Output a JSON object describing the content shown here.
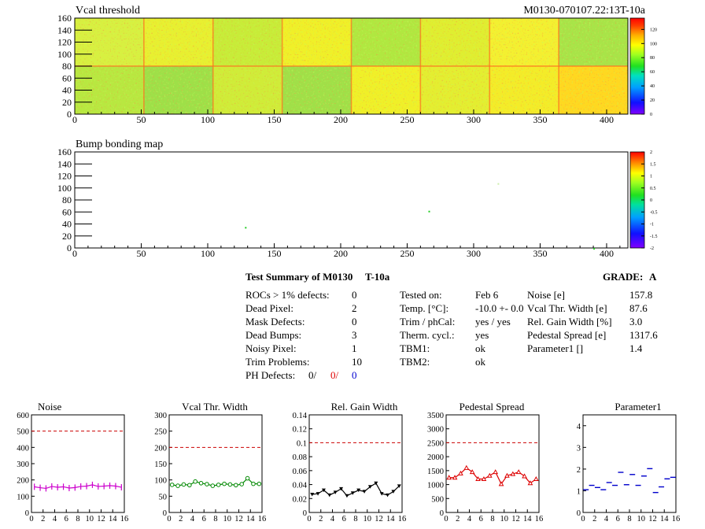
{
  "maps": {
    "vcal": {
      "title": "Vcal threshold",
      "module_id": "M0130-070107.22:13T-10a",
      "x_ticks": [
        "0",
        "50",
        "100",
        "150",
        "200",
        "250",
        "300",
        "350",
        "400"
      ],
      "y_ticks": [
        "0",
        "20",
        "40",
        "60",
        "80",
        "100",
        "120",
        "140",
        "160"
      ],
      "colorbar_ticks": [
        "0",
        "20",
        "40",
        "60",
        "80",
        "100",
        "120"
      ]
    },
    "bump": {
      "title": "Bump bonding map",
      "x_ticks": [
        "0",
        "50",
        "100",
        "150",
        "200",
        "250",
        "300",
        "350",
        "400"
      ],
      "y_ticks": [
        "0",
        "20",
        "40",
        "60",
        "80",
        "100",
        "120",
        "140",
        "160"
      ],
      "colorbar_ticks": [
        "-2",
        "-1.5",
        "-1",
        "-0.5",
        "0",
        "0.5",
        "1",
        "1.5",
        "2"
      ]
    }
  },
  "summary": {
    "title": "Test Summary of M0130",
    "module_tag": "T-10a",
    "grade_label": "GRADE:",
    "grade": "A",
    "defects": [
      {
        "label": "ROCs > 1% defects:",
        "value": "0"
      },
      {
        "label": "Dead Pixel:",
        "value": "2"
      },
      {
        "label": "Mask Defects:",
        "value": "0"
      },
      {
        "label": "Dead Bumps:",
        "value": "3"
      },
      {
        "label": "Noisy Pixel:",
        "value": "1"
      },
      {
        "label": "Trim Problems:",
        "value": "10"
      }
    ],
    "ph_defects": {
      "label": "PH Defects:",
      "v1": "0/",
      "v2": "0/",
      "v3": "0"
    },
    "conditions": [
      {
        "label": "Tested on:",
        "value": "Feb 6"
      },
      {
        "label": "Temp. [°C]:",
        "value": "-10.0 +- 0.0"
      },
      {
        "label": "Trim / phCal:",
        "value": "yes / yes"
      },
      {
        "label": "Therm. cycl.:",
        "value": "yes"
      },
      {
        "label": "TBM1:",
        "value": "ok"
      },
      {
        "label": "TBM2:",
        "value": "ok"
      }
    ],
    "results": [
      {
        "label": "Noise [e]",
        "value": "157.8"
      },
      {
        "label": "Vcal Thr. Width [e]",
        "value": "87.6"
      },
      {
        "label": "Rel. Gain Width [%]",
        "value": "3.0"
      },
      {
        "label": "Pedestal Spread [e]",
        "value": "1317.6"
      },
      {
        "label": "Parameter1 []",
        "value": "1.4"
      }
    ]
  },
  "colors": {
    "noise": "#cc00cc",
    "vcal": "#008800",
    "gain": "#000000",
    "pedestal": "#dd0000",
    "param": "#0000cc",
    "limit": "#cc0000"
  },
  "chart_data": [
    {
      "type": "line",
      "title": "Noise",
      "xlim": [
        0,
        16
      ],
      "ylim": [
        0,
        600
      ],
      "x_ticks": [
        0,
        2,
        4,
        6,
        8,
        10,
        12,
        14,
        16
      ],
      "y_ticks": [
        0,
        100,
        200,
        300,
        400,
        500,
        600
      ],
      "limit": 500,
      "x": [
        0,
        1,
        2,
        3,
        4,
        5,
        6,
        7,
        8,
        9,
        10,
        11,
        12,
        13,
        14,
        15
      ],
      "values": [
        158,
        152,
        148,
        160,
        155,
        158,
        150,
        153,
        160,
        162,
        170,
        160,
        162,
        165,
        162,
        155
      ]
    },
    {
      "type": "line",
      "title": "Vcal Thr. Width",
      "xlim": [
        0,
        16
      ],
      "ylim": [
        0,
        300
      ],
      "x_ticks": [
        0,
        2,
        4,
        6,
        8,
        10,
        12,
        14,
        16
      ],
      "y_ticks": [
        0,
        50,
        100,
        150,
        200,
        250,
        300
      ],
      "limit": 200,
      "x": [
        0,
        1,
        2,
        3,
        4,
        5,
        6,
        7,
        8,
        9,
        10,
        11,
        12,
        13,
        14,
        15
      ],
      "values": [
        85,
        82,
        86,
        84,
        95,
        90,
        87,
        82,
        85,
        88,
        86,
        84,
        87,
        105,
        88,
        88
      ]
    },
    {
      "type": "line",
      "title": "Rel. Gain Width",
      "xlim": [
        0,
        16
      ],
      "ylim": [
        0,
        0.14
      ],
      "x_ticks": [
        0,
        2,
        4,
        6,
        8,
        10,
        12,
        14,
        16
      ],
      "y_ticks": [
        0,
        0.02,
        0.04,
        0.06,
        0.08,
        0.1,
        0.12,
        0.14
      ],
      "y_tick_labels": [
        "0",
        "0.02",
        "0.04",
        "0.06",
        "0.08",
        "0.1",
        "0.12",
        "0.14"
      ],
      "limit": 0.1,
      "x": [
        0,
        1,
        2,
        3,
        4,
        5,
        6,
        7,
        8,
        9,
        10,
        11,
        12,
        13,
        14,
        15
      ],
      "values": [
        0.026,
        0.027,
        0.032,
        0.025,
        0.029,
        0.034,
        0.024,
        0.028,
        0.032,
        0.03,
        0.037,
        0.042,
        0.027,
        0.025,
        0.03,
        0.038
      ]
    },
    {
      "type": "line",
      "title": "Pedestal Spread",
      "xlim": [
        0,
        16
      ],
      "ylim": [
        0,
        3500
      ],
      "x_ticks": [
        0,
        2,
        4,
        6,
        8,
        10,
        12,
        14,
        16
      ],
      "y_ticks": [
        0,
        500,
        1000,
        1500,
        2000,
        2500,
        3000,
        3500
      ],
      "limit": 2500,
      "x": [
        0,
        1,
        2,
        3,
        4,
        5,
        6,
        7,
        8,
        9,
        10,
        11,
        12,
        13,
        14,
        15
      ],
      "values": [
        1250,
        1250,
        1400,
        1600,
        1450,
        1200,
        1200,
        1320,
        1450,
        1020,
        1320,
        1380,
        1450,
        1300,
        1050,
        1200
      ]
    },
    {
      "type": "scatter",
      "title": "Parameter1",
      "xlim": [
        0,
        16
      ],
      "ylim": [
        0,
        4.5
      ],
      "x_ticks": [
        0,
        2,
        4,
        6,
        8,
        10,
        12,
        14,
        16
      ],
      "y_ticks": [
        0,
        1,
        2,
        3,
        4
      ],
      "x": [
        0,
        1,
        2,
        3,
        4,
        5,
        6,
        7,
        8,
        9,
        10,
        11,
        12,
        13,
        14,
        15
      ],
      "values": [
        1.05,
        1.25,
        1.15,
        1.05,
        1.38,
        1.25,
        1.85,
        1.28,
        1.75,
        1.25,
        1.68,
        2.02,
        0.92,
        1.18,
        1.55,
        1.62
      ]
    }
  ]
}
